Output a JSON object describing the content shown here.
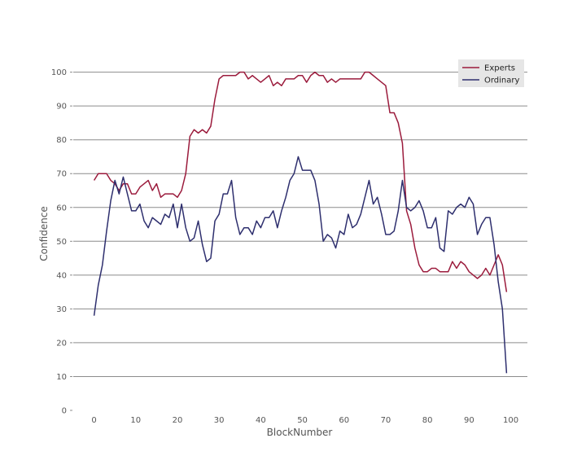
{
  "chart_data": {
    "type": "line",
    "xlabel": "BlockNumber",
    "ylabel": "Confidence",
    "xlim": [
      -5,
      104
    ],
    "ylim": [
      0,
      104
    ],
    "xticks": [
      0,
      10,
      20,
      30,
      40,
      50,
      60,
      70,
      80,
      90,
      100
    ],
    "yticks": [
      0,
      10,
      20,
      30,
      40,
      50,
      60,
      70,
      80,
      90,
      100
    ],
    "grid": "horizontal",
    "legend_position": "top-right",
    "series": [
      {
        "name": "Experts",
        "color": "#9b1b3c",
        "x": [
          0,
          1,
          2,
          3,
          4,
          5,
          6,
          7,
          8,
          9,
          10,
          11,
          12,
          13,
          14,
          15,
          16,
          17,
          18,
          19,
          20,
          21,
          22,
          23,
          24,
          25,
          26,
          27,
          28,
          29,
          30,
          31,
          32,
          33,
          34,
          35,
          36,
          37,
          38,
          39,
          40,
          41,
          42,
          43,
          44,
          45,
          46,
          47,
          48,
          49,
          50,
          51,
          52,
          53,
          54,
          55,
          56,
          57,
          58,
          59,
          60,
          61,
          62,
          63,
          64,
          65,
          66,
          67,
          68,
          69,
          70,
          71,
          72,
          73,
          74,
          75,
          76,
          77,
          78,
          79,
          80,
          81,
          82,
          83,
          84,
          85,
          86,
          87,
          88,
          89,
          90,
          91,
          92,
          93,
          94,
          95,
          96,
          97,
          98,
          99
        ],
        "values": [
          68,
          70,
          70,
          70,
          68,
          67,
          65,
          67,
          67,
          64,
          64,
          66,
          67,
          68,
          65,
          67,
          63,
          64,
          64,
          64,
          63,
          65,
          70,
          81,
          83,
          82,
          83,
          82,
          84,
          92,
          98,
          99,
          99,
          99,
          99,
          100,
          100,
          98,
          99,
          98,
          97,
          98,
          99,
          96,
          97,
          96,
          98,
          98,
          98,
          99,
          99,
          97,
          99,
          100,
          99,
          99,
          97,
          98,
          97,
          98,
          98,
          98,
          98,
          98,
          98,
          100,
          100,
          99,
          98,
          97,
          96,
          88,
          88,
          85,
          79,
          59,
          55,
          48,
          43,
          41,
          41,
          42,
          42,
          41,
          41,
          41,
          44,
          42,
          44,
          43,
          41,
          40,
          39,
          40,
          42,
          40,
          43,
          46,
          43,
          35
        ]
      },
      {
        "name": "Ordinary",
        "color": "#2e2f6e",
        "x": [
          0,
          1,
          2,
          3,
          4,
          5,
          6,
          7,
          8,
          9,
          10,
          11,
          12,
          13,
          14,
          15,
          16,
          17,
          18,
          19,
          20,
          21,
          22,
          23,
          24,
          25,
          26,
          27,
          28,
          29,
          30,
          31,
          32,
          33,
          34,
          35,
          36,
          37,
          38,
          39,
          40,
          41,
          42,
          43,
          44,
          45,
          46,
          47,
          48,
          49,
          50,
          51,
          52,
          53,
          54,
          55,
          56,
          57,
          58,
          59,
          60,
          61,
          62,
          63,
          64,
          65,
          66,
          67,
          68,
          69,
          70,
          71,
          72,
          73,
          74,
          75,
          76,
          77,
          78,
          79,
          80,
          81,
          82,
          83,
          84,
          85,
          86,
          87,
          88,
          89,
          90,
          91,
          92,
          93,
          94,
          95,
          96,
          97,
          98,
          99
        ],
        "values": [
          28,
          37,
          43,
          53,
          62,
          68,
          64,
          69,
          64,
          59,
          59,
          61,
          56,
          54,
          57,
          56,
          55,
          58,
          57,
          61,
          54,
          61,
          54,
          50,
          51,
          56,
          49,
          44,
          45,
          56,
          58,
          64,
          64,
          68,
          57,
          52,
          54,
          54,
          52,
          56,
          54,
          57,
          57,
          59,
          54,
          59,
          63,
          68,
          70,
          75,
          71,
          71,
          71,
          68,
          61,
          50,
          52,
          51,
          48,
          53,
          52,
          58,
          54,
          55,
          58,
          63,
          68,
          61,
          63,
          58,
          52,
          52,
          53,
          59,
          68,
          60,
          59,
          60,
          62,
          59,
          54,
          54,
          57,
          48,
          47,
          59,
          58,
          60,
          61,
          60,
          63,
          61,
          52,
          55,
          57,
          57,
          49,
          38,
          30,
          11
        ]
      }
    ]
  }
}
